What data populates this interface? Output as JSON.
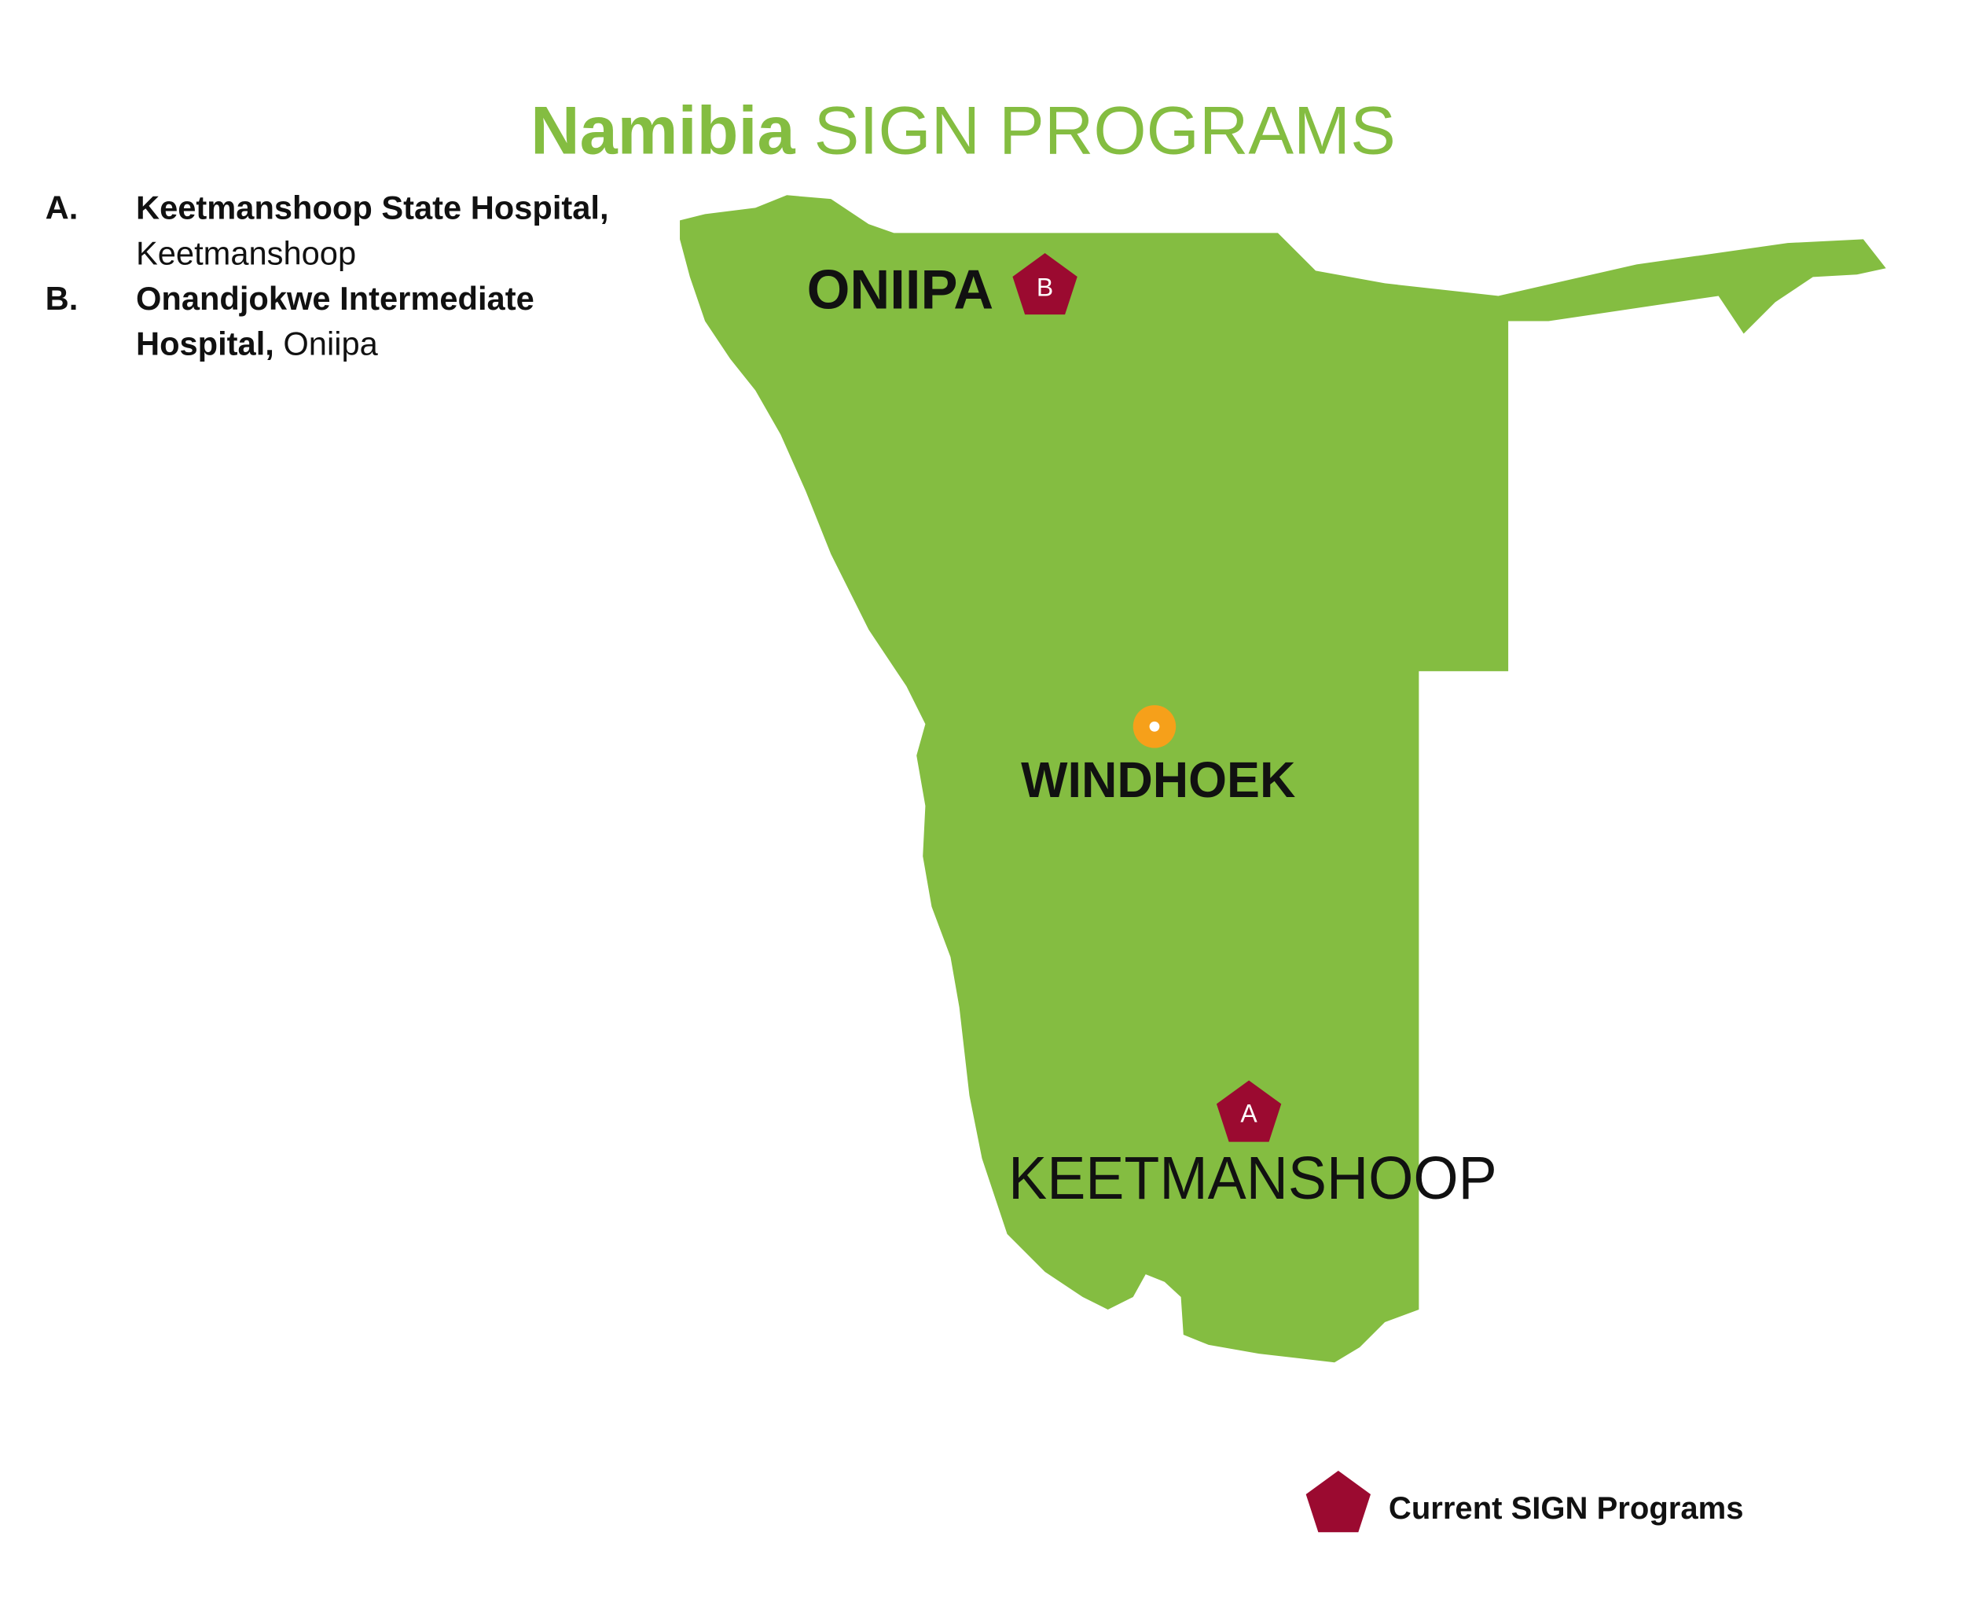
{
  "header": {
    "title_bold": "Namibia",
    "title_rest": "SIGN PROGRAMS"
  },
  "list": [
    {
      "letter": "A.",
      "name_lines": [
        "Keetmanshoop State Hospital,"
      ],
      "place": "Keetmanshoop"
    },
    {
      "letter": "B.",
      "name_lines": [
        "Onandjokwe Intermediate",
        "Hospital,"
      ],
      "place": "Oniipa"
    }
  ],
  "map": {
    "capital": "WINDHOEK",
    "sites": [
      {
        "marker": "A",
        "label": "KEETMANSHOOP"
      },
      {
        "marker": "B",
        "label": "ONIIPA"
      }
    ]
  },
  "legend": {
    "label": "Current SIGN Programs"
  }
}
